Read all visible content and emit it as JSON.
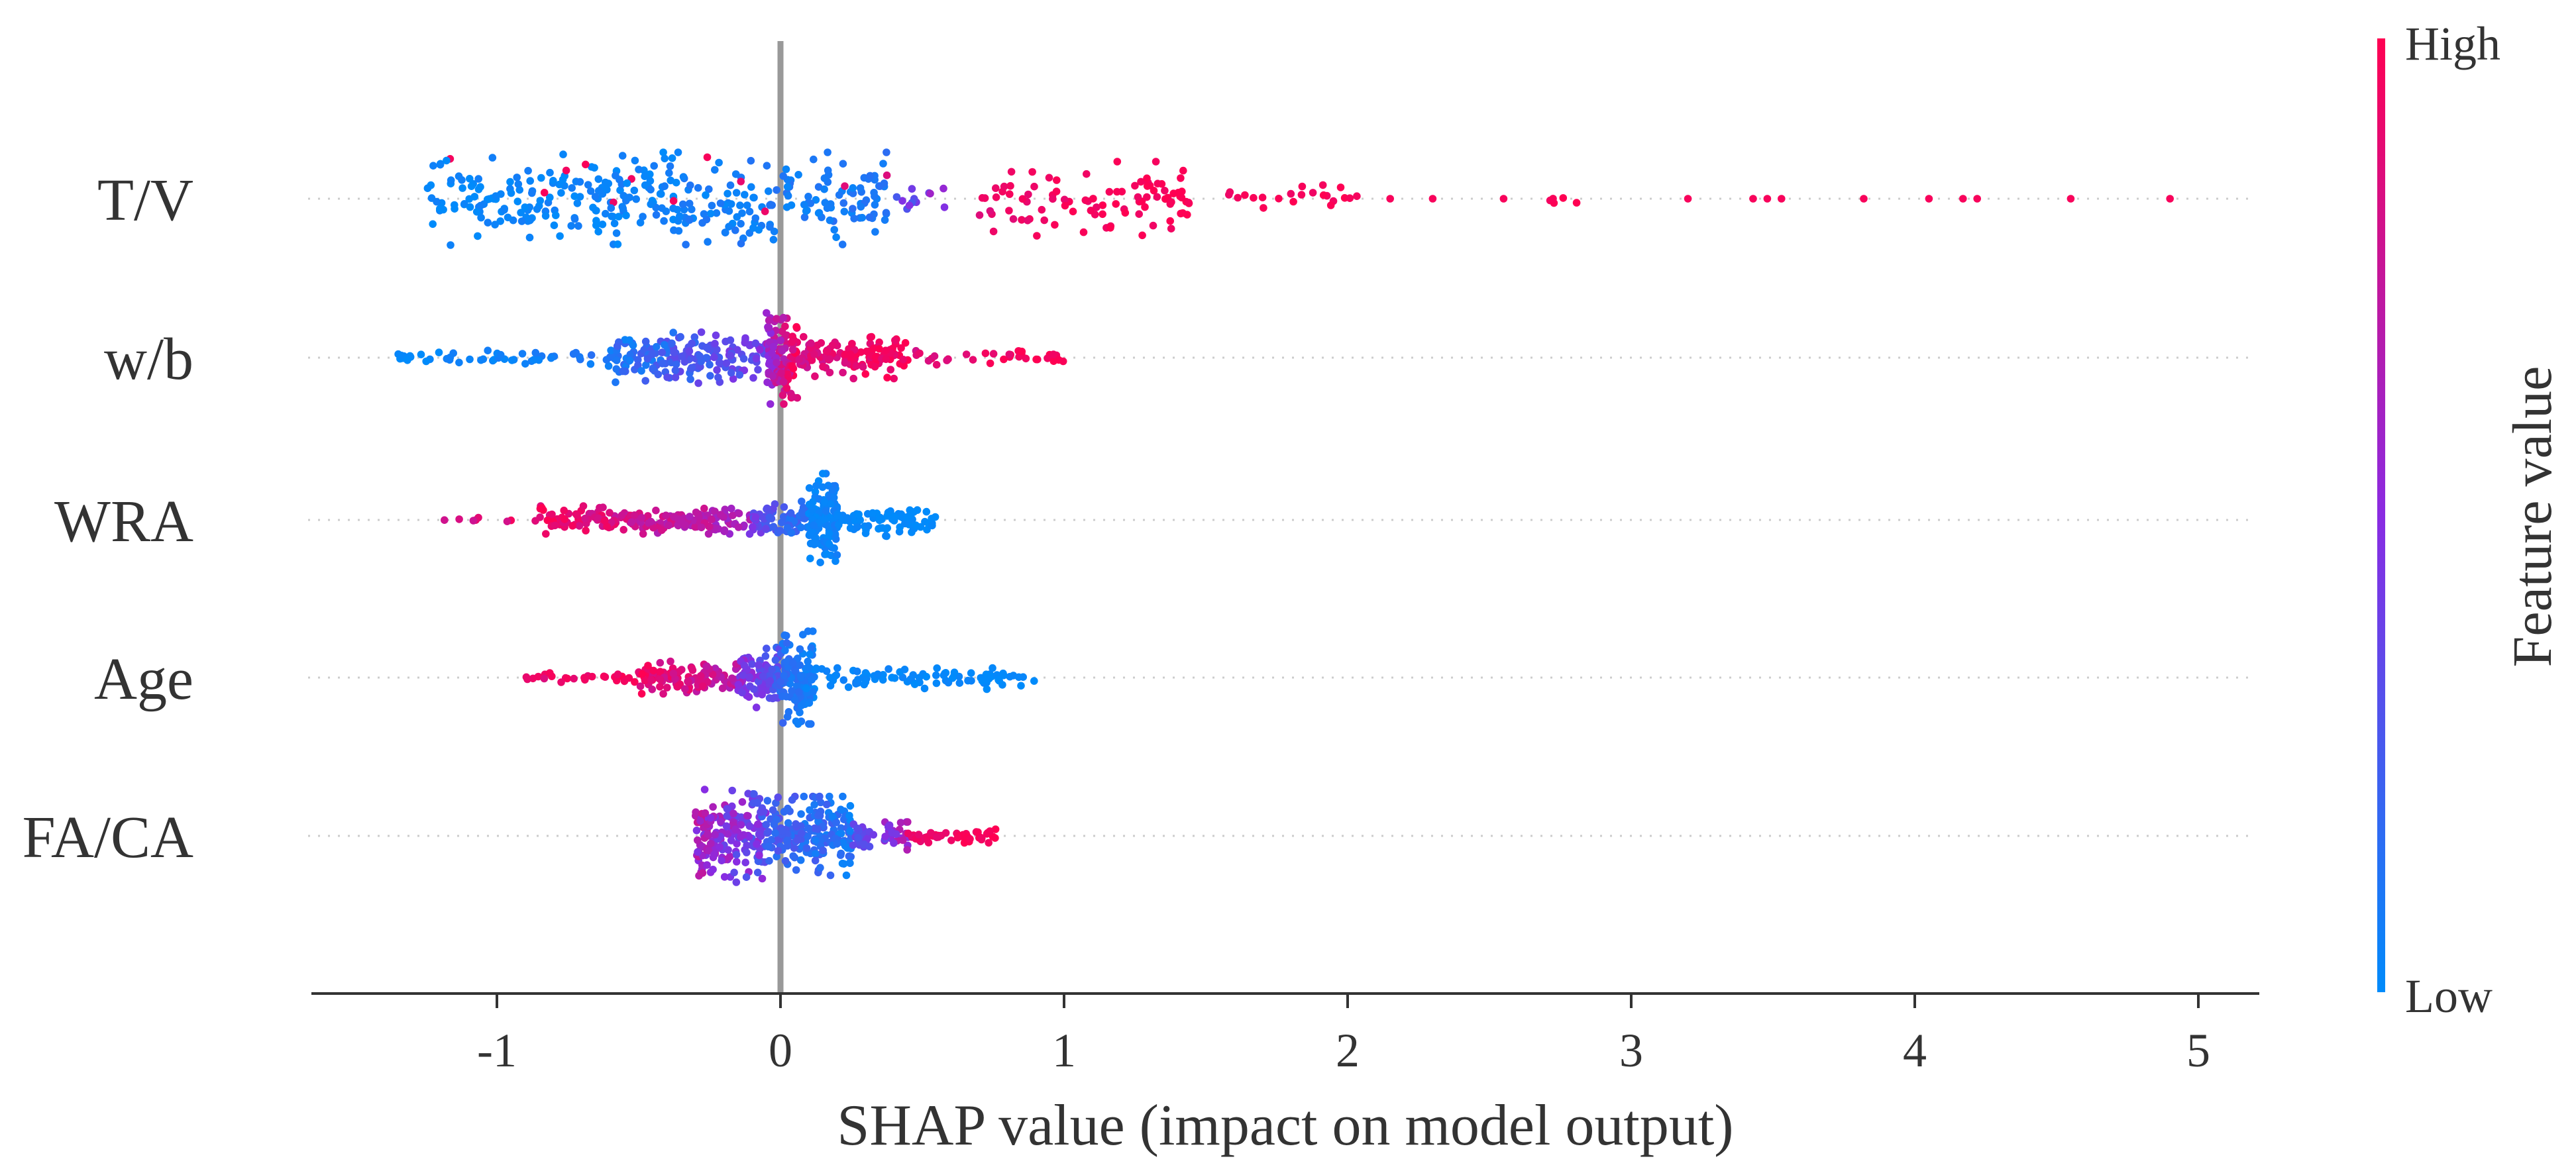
{
  "chart_data": {
    "type": "scatter",
    "subtype": "shap-beeswarm-summary",
    "title": "",
    "xlabel": "SHAP value (impact on model output)",
    "ylabel": "",
    "xlim": [
      -1.65,
      5.25
    ],
    "xticks": [
      -1,
      0,
      1,
      2,
      3,
      4,
      5
    ],
    "xtick_labels": [
      "-1",
      "0",
      "1",
      "2",
      "3",
      "4",
      "5"
    ],
    "zero_line_at": 0,
    "colorbar": {
      "title": "Feature value",
      "high_label": "High",
      "low_label": "Low",
      "colors": {
        "low": "#008bfb",
        "mid": "#8a2be2",
        "high": "#ff0052"
      }
    },
    "features": [
      {
        "name": "T/V",
        "clusters": [
          {
            "from": -1.25,
            "to": 0.38,
            "n": 360,
            "spread": 1.0,
            "fv_start": 0.0,
            "fv_end": 0.1,
            "fv_jitter": 0.06,
            "pink_frac": 0.03
          },
          {
            "from": 0.4,
            "to": 0.6,
            "n": 12,
            "spread": 0.35,
            "fv_start": 0.35,
            "fv_end": 0.55,
            "fv_jitter": 0.15
          },
          {
            "from": 0.7,
            "to": 1.45,
            "n": 95,
            "spread": 0.8,
            "fv_start": 0.9,
            "fv_end": 1.0,
            "fv_jitter": 0.05
          },
          {
            "from": 1.55,
            "to": 2.05,
            "n": 22,
            "spread": 0.3,
            "fv_start": 0.93,
            "fv_end": 1.0,
            "fv_jitter": 0.04
          },
          {
            "from": 2.7,
            "to": 2.82,
            "n": 5,
            "spread": 0.2,
            "fv_start": 0.95,
            "fv_end": 1.0,
            "fv_jitter": 0.03
          }
        ],
        "outliers": [
          2.15,
          2.3,
          2.55,
          3.2,
          3.43,
          3.48,
          3.53,
          3.82,
          4.05,
          4.17,
          4.22,
          4.55,
          4.9
        ]
      },
      {
        "name": "w/b",
        "clusters": [
          {
            "from": -1.35,
            "to": -0.6,
            "n": 50,
            "spread": 0.18,
            "fv_start": 0.0,
            "fv_end": 0.1,
            "fv_jitter": 0.05
          },
          {
            "from": -0.6,
            "to": -0.05,
            "n": 180,
            "spread": 0.55,
            "fv_start": 0.1,
            "fv_end": 0.42,
            "fv_jitter": 0.12
          },
          {
            "from": -0.05,
            "to": 0.06,
            "n": 110,
            "spread": 1.0,
            "fv_start": 0.55,
            "fv_end": 0.95,
            "fv_jitter": 0.12
          },
          {
            "from": 0.06,
            "to": 0.45,
            "n": 130,
            "spread": 0.45,
            "fv_start": 0.82,
            "fv_end": 0.98,
            "fv_jitter": 0.08
          },
          {
            "from": 0.45,
            "to": 1.0,
            "n": 35,
            "spread": 0.18,
            "fv_start": 0.85,
            "fv_end": 1.0,
            "fv_jitter": 0.06
          }
        ],
        "outliers": []
      },
      {
        "name": "WRA",
        "clusters": [
          {
            "from": -1.3,
            "to": -0.85,
            "n": 8,
            "spread": 0.05,
            "fv_start": 0.7,
            "fv_end": 0.95,
            "fv_jitter": 0.1
          },
          {
            "from": -0.85,
            "to": -0.1,
            "n": 190,
            "spread": 0.3,
            "fv_start": 0.95,
            "fv_end": 0.62,
            "fv_jitter": 0.1
          },
          {
            "from": -0.12,
            "to": 0.12,
            "n": 80,
            "spread": 0.4,
            "fv_start": 0.4,
            "fv_end": 0.1,
            "fv_jitter": 0.1
          },
          {
            "from": 0.1,
            "to": 0.2,
            "n": 120,
            "spread": 1.0,
            "fv_start": 0.02,
            "fv_end": 0.06,
            "fv_jitter": 0.04
          },
          {
            "from": 0.2,
            "to": 0.55,
            "n": 80,
            "spread": 0.35,
            "fv_start": 0.02,
            "fv_end": 0.0,
            "fv_jitter": 0.03
          }
        ],
        "outliers": []
      },
      {
        "name": "Age",
        "clusters": [
          {
            "from": -0.9,
            "to": -0.5,
            "n": 25,
            "spread": 0.1,
            "fv_start": 0.9,
            "fv_end": 0.95,
            "fv_jitter": 0.06
          },
          {
            "from": -0.5,
            "to": -0.15,
            "n": 120,
            "spread": 0.35,
            "fv_start": 0.92,
            "fv_end": 0.72,
            "fv_jitter": 0.1
          },
          {
            "from": -0.15,
            "to": 0.0,
            "n": 90,
            "spread": 0.65,
            "fv_start": 0.55,
            "fv_end": 0.25,
            "fv_jitter": 0.12
          },
          {
            "from": 0.0,
            "to": 0.12,
            "n": 110,
            "spread": 1.0,
            "fv_start": 0.15,
            "fv_end": 0.05,
            "fv_jitter": 0.06
          },
          {
            "from": 0.12,
            "to": 0.9,
            "n": 90,
            "spread": 0.25,
            "fv_start": 0.04,
            "fv_end": 0.0,
            "fv_jitter": 0.03
          }
        ],
        "outliers": []
      },
      {
        "name": "FA/CA",
        "clusters": [
          {
            "from": -0.3,
            "to": -0.05,
            "n": 180,
            "spread": 1.0,
            "fv_start": 0.65,
            "fv_end": 0.35,
            "fv_jitter": 0.18
          },
          {
            "from": -0.05,
            "to": 0.25,
            "n": 190,
            "spread": 0.85,
            "fv_start": 0.25,
            "fv_end": 0.1,
            "fv_jitter": 0.1
          },
          {
            "from": 0.25,
            "to": 0.45,
            "n": 50,
            "spread": 0.3,
            "fv_start": 0.35,
            "fv_end": 0.6,
            "fv_jitter": 0.15
          },
          {
            "from": 0.45,
            "to": 0.76,
            "n": 45,
            "spread": 0.15,
            "fv_start": 0.9,
            "fv_end": 1.0,
            "fv_jitter": 0.05
          }
        ],
        "outliers": []
      }
    ]
  }
}
